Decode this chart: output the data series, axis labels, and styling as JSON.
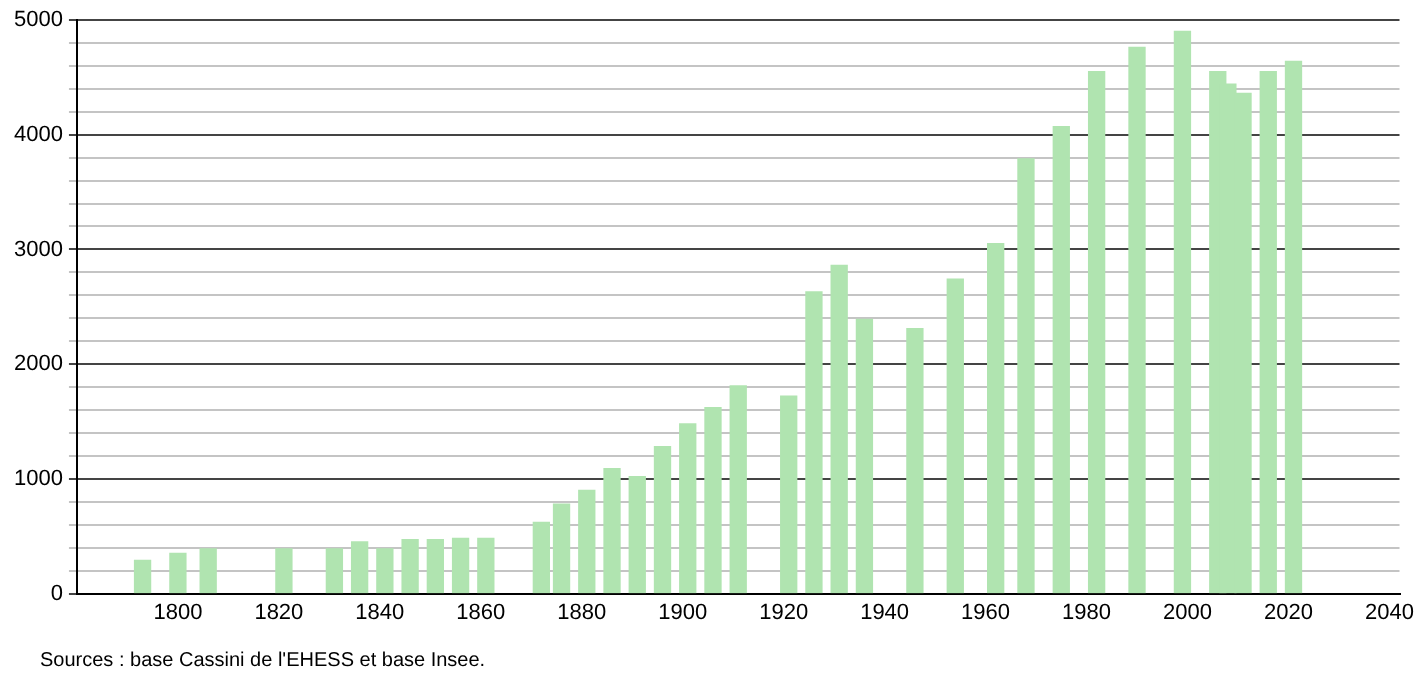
{
  "chart_data": {
    "type": "bar",
    "color": "#b0e4b0",
    "x": [
      1793,
      1800,
      1806,
      1821,
      1831,
      1836,
      1841,
      1846,
      1851,
      1856,
      1861,
      1872,
      1876,
      1881,
      1886,
      1891,
      1896,
      1901,
      1906,
      1911,
      1921,
      1926,
      1931,
      1936,
      1946,
      1954,
      1962,
      1968,
      1975,
      1982,
      1990,
      1999,
      2006,
      2008,
      2011,
      2016,
      2021
    ],
    "values": [
      290,
      350,
      390,
      390,
      390,
      450,
      390,
      470,
      470,
      480,
      480,
      620,
      780,
      900,
      1090,
      1020,
      1280,
      1480,
      1620,
      1810,
      1720,
      2630,
      2860,
      2390,
      2310,
      2740,
      3050,
      3790,
      4070,
      4550,
      4760,
      4900,
      4550,
      4440,
      4360,
      4550,
      4640
    ],
    "xlim": [
      1780,
      2042
    ],
    "xticks": [
      1800,
      1820,
      1840,
      1860,
      1880,
      1900,
      1920,
      1940,
      1960,
      1980,
      2000,
      2020,
      2040
    ],
    "ylim": [
      0,
      5000
    ],
    "yticks": [
      0,
      {
        "value": 200,
        "label": null
      },
      {
        "value": 400,
        "label": null
      },
      {
        "value": 600,
        "label": null
      },
      {
        "value": 800,
        "label": null
      },
      1000,
      {
        "value": 1200,
        "label": null
      },
      {
        "value": 1400,
        "label": null
      },
      {
        "value": 1600,
        "label": null
      },
      {
        "value": 1800,
        "label": null
      },
      2000,
      {
        "value": 2200,
        "label": null
      },
      {
        "value": 2400,
        "label": null
      },
      {
        "value": 2600,
        "label": null
      },
      {
        "value": 2800,
        "label": null
      },
      3000,
      {
        "value": 3200,
        "label": null
      },
      {
        "value": 3400,
        "label": null
      },
      {
        "value": 3600,
        "label": null
      },
      {
        "value": 3800,
        "label": null
      },
      4000,
      {
        "value": 4200,
        "label": null
      },
      {
        "value": 4400,
        "label": null
      },
      {
        "value": 4600,
        "label": null
      },
      {
        "value": 4800,
        "label": null
      },
      5000
    ],
    "grid": "y",
    "annotations": [
      "Sources : base Cassini de l'EHESS et base Insee."
    ]
  }
}
